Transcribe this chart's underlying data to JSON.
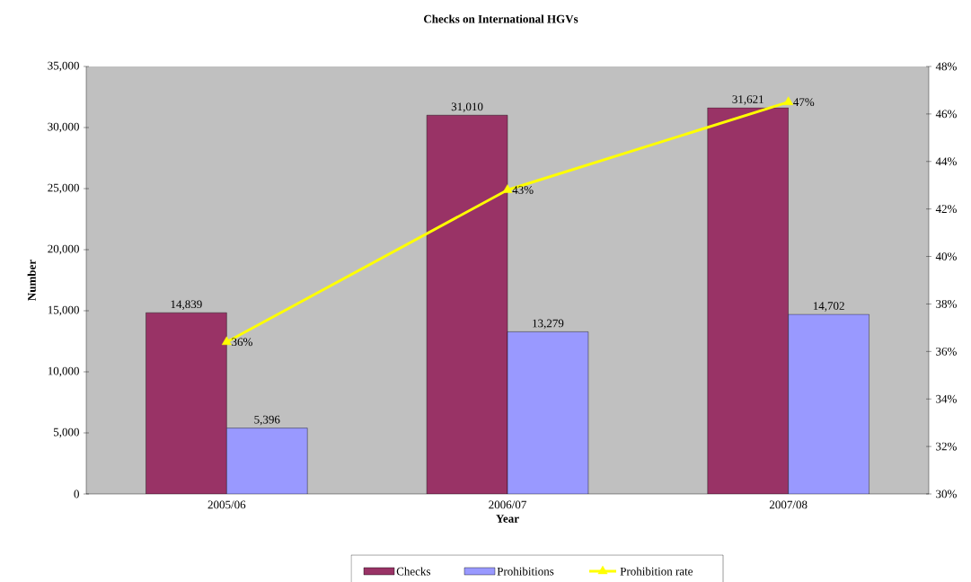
{
  "chart_data": {
    "type": "bar",
    "title": "Checks on International HGVs",
    "xlabel": "Year",
    "ylabel": "Number",
    "categories": [
      "2005/06",
      "2006/07",
      "2007/08"
    ],
    "series": [
      {
        "name": "Checks",
        "color": "#993366",
        "values": [
          14839,
          31010,
          31621
        ],
        "value_labels": [
          "14,839",
          "31,010",
          "31,621"
        ]
      },
      {
        "name": "Prohibitions",
        "color": "#9999ff",
        "values": [
          5396,
          13279,
          14702
        ],
        "value_labels": [
          "5,396",
          "13,279",
          "14,702"
        ]
      },
      {
        "name": "Prohibition rate",
        "type": "line",
        "axis": "y2",
        "color": "#ffff00",
        "values": [
          36.4,
          42.8,
          46.5
        ],
        "value_labels": [
          "36%",
          "43%",
          "47%"
        ]
      }
    ],
    "ylim": [
      0,
      35000
    ],
    "yticks": [
      0,
      {
        "value": 5000,
        "label": "5,000"
      },
      {
        "value": 10000,
        "label": "10,000"
      },
      {
        "value": 15000,
        "label": "15,000"
      },
      {
        "value": 20000,
        "label": "20,000"
      },
      {
        "value": 25000,
        "label": "25,000"
      },
      {
        "value": 30000,
        "label": "30,000"
      },
      {
        "value": 35000,
        "label": "35,000"
      }
    ],
    "y2lim": [
      30,
      48
    ],
    "y2ticks": [
      {
        "value": 30,
        "label": "30%"
      },
      {
        "value": 32,
        "label": "32%"
      },
      {
        "value": 34,
        "label": "34%"
      },
      {
        "value": 36,
        "label": "36%"
      },
      {
        "value": 38,
        "label": "38%"
      },
      {
        "value": 40,
        "label": "40%"
      },
      {
        "value": 42,
        "label": "42%"
      },
      {
        "value": 44,
        "label": "44%"
      },
      {
        "value": 46,
        "label": "46%"
      },
      {
        "value": 48,
        "label": "48%"
      }
    ],
    "marker": "triangle",
    "legend": "bottom",
    "grid": false
  }
}
